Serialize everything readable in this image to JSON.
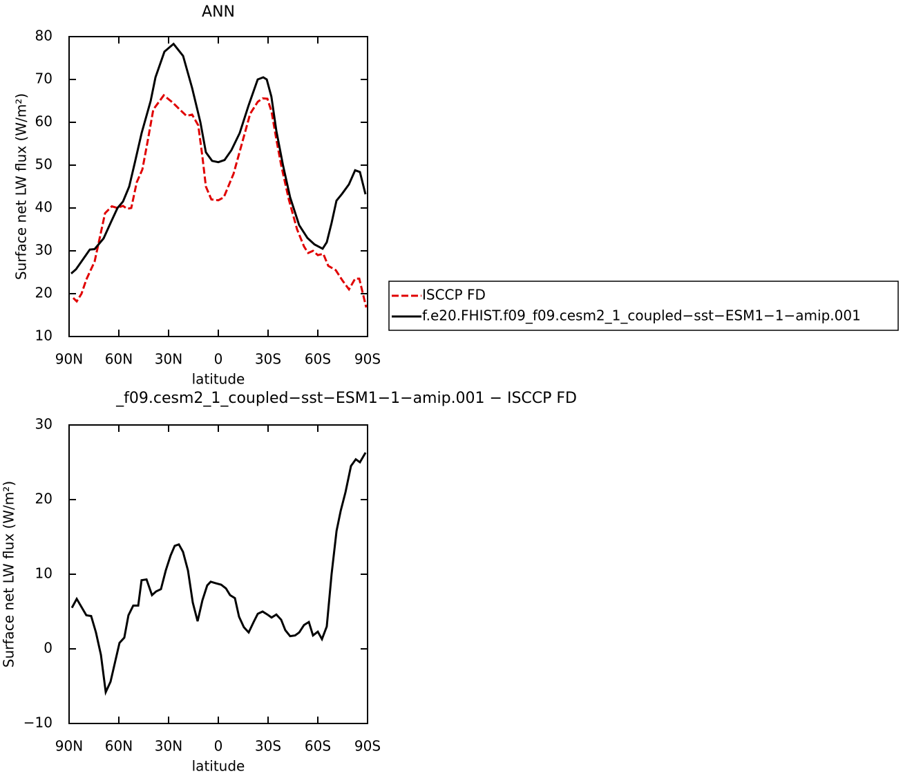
{
  "chart_data": [
    {
      "type": "line",
      "title": "ANN",
      "xlabel": "latitude",
      "ylabel": "Surface net LW flux (W/m²)",
      "xlim": [
        90,
        -90
      ],
      "xticks": [
        {
          "value": 90,
          "label": "90N"
        },
        {
          "value": 60,
          "label": "60N"
        },
        {
          "value": 30,
          "label": "30N"
        },
        0,
        {
          "value": -30,
          "label": "30S"
        },
        {
          "value": -60,
          "label": "60S"
        },
        {
          "value": -90,
          "label": "90S"
        }
      ],
      "ylim": [
        10,
        80
      ],
      "yticks": [
        10,
        20,
        30,
        40,
        50,
        60,
        70,
        80
      ],
      "legend": "right",
      "series": [
        {
          "name": "ISCCP FD",
          "color": "#e00000",
          "dash": true,
          "x": [
            87.5,
            85.4,
            82.5,
            79.6,
            74.6,
            68.3,
            64.2,
            60.8,
            57.5,
            55,
            52.5,
            49.2,
            45.8,
            42.9,
            39.2,
            32.9,
            27.5,
            23.3,
            19.2,
            15.8,
            12.1,
            9.6,
            7.5,
            4.2,
            0,
            -3.3,
            -9.2,
            -14.2,
            -19.2,
            -23.8,
            -26.7,
            -29.6,
            -32.1,
            -35,
            -37.9,
            -42.5,
            -47.5,
            -51.7,
            -54.2,
            -57.1,
            -60,
            -63.3,
            -66.3,
            -70.8,
            -75,
            -78.8,
            -82.5,
            -85,
            -89.2
          ],
          "values": [
            19,
            18.2,
            20,
            23.3,
            27.5,
            38.8,
            40.4,
            40,
            40.5,
            39.8,
            40,
            46,
            49,
            55,
            63,
            66.3,
            64.6,
            63,
            61.5,
            61.8,
            59.3,
            52,
            45,
            42,
            41.8,
            42.5,
            48,
            55,
            62,
            64.8,
            65.6,
            65.5,
            62.5,
            56,
            50,
            42,
            35,
            31,
            29.5,
            30,
            29,
            29.3,
            26.5,
            25.5,
            23,
            21,
            23.5,
            23.5,
            16.8
          ]
        },
        {
          "name": "f.e20.FHIST.f09_f09.cesm2_1_coupled−sst−ESM1−1−amip.001",
          "color": "#000000",
          "dash": false,
          "x": [
            88.75,
            85.8,
            77.5,
            74.6,
            69.2,
            65,
            60.8,
            57.5,
            53.75,
            50.4,
            46.25,
            40.8,
            37.9,
            32.5,
            27,
            21.25,
            15.8,
            10.8,
            7.5,
            3.75,
            0,
            -3.75,
            -7.9,
            -12.9,
            -18.3,
            -23.75,
            -27.1,
            -29.2,
            -32,
            -35,
            -39,
            -43.3,
            -48.75,
            -53.75,
            -58,
            -62.9,
            -65.4,
            -68.3,
            -71.25,
            -74.6,
            -78.75,
            -82.5,
            -85.4,
            -88.75
          ],
          "values": [
            24.7,
            25.7,
            30.3,
            30.4,
            32.9,
            36.5,
            40,
            41.5,
            45,
            50.5,
            57.5,
            65,
            70.5,
            76.5,
            78.3,
            75.5,
            68,
            60,
            53,
            51,
            50.7,
            51.2,
            53.5,
            57.5,
            64,
            70,
            70.5,
            70,
            66,
            58,
            50,
            42.5,
            36,
            33,
            31.5,
            30.5,
            32,
            36.5,
            41.7,
            43.3,
            45.5,
            48.8,
            48.4,
            43.2
          ]
        }
      ]
    },
    {
      "type": "line",
      "title": "_f09.cesm2_1_coupled−sst−ESM1−1−amip.001 − ISCCP FD",
      "xlabel": "latitude",
      "ylabel": "Surface net LW flux (W/m²)",
      "xlim": [
        90,
        -90
      ],
      "xticks": [
        {
          "value": 90,
          "label": "90N"
        },
        {
          "value": 60,
          "label": "60N"
        },
        {
          "value": 30,
          "label": "30N"
        },
        0,
        {
          "value": -30,
          "label": "30S"
        },
        {
          "value": -60,
          "label": "60S"
        },
        {
          "value": -90,
          "label": "90S"
        }
      ],
      "ylim": [
        -10,
        30
      ],
      "yticks": [
        {
          "value": -10,
          "label": "−10"
        },
        0,
        10,
        20,
        30
      ],
      "series": [
        {
          "color": "#000000",
          "dash": false,
          "x": [
            88.3,
            85.4,
            79.6,
            76.7,
            73.8,
            70.8,
            67.9,
            65,
            62.1,
            59.6,
            56.7,
            54.2,
            51.3,
            48.3,
            46.3,
            43.3,
            40,
            37.5,
            34.6,
            31.7,
            28.8,
            26.3,
            23.8,
            21.3,
            18.3,
            15.4,
            12.5,
            9.6,
            6.7,
            4.6,
            1.7,
            -1.7,
            -4.6,
            -7.1,
            -10,
            -12.5,
            -15.4,
            -18.3,
            -21.3,
            -23.8,
            -26.7,
            -29.6,
            -32.1,
            -35,
            -37.9,
            -40.4,
            -43.3,
            -46.3,
            -48.8,
            -51.7,
            -54.6,
            -57.1,
            -60,
            -62.5,
            -65.4,
            -68.3,
            -71.3,
            -73.8,
            -76.7,
            -80,
            -82.9,
            -85.4,
            -88.8
          ],
          "values": [
            5.5,
            6.7,
            4.5,
            4.4,
            2.2,
            -0.8,
            -5.8,
            -4.4,
            -1.6,
            0.8,
            1.5,
            4.5,
            5.8,
            5.8,
            9.2,
            9.3,
            7.2,
            7.7,
            8,
            10.5,
            12.5,
            13.8,
            14,
            13,
            10.5,
            6.2,
            3.7,
            6.5,
            8.5,
            9,
            8.8,
            8.6,
            8.1,
            7.2,
            6.8,
            4.3,
            2.9,
            2.2,
            3.6,
            4.7,
            5,
            4.6,
            4.2,
            4.6,
            3.9,
            2.5,
            1.7,
            1.8,
            2.2,
            3.2,
            3.6,
            1.8,
            2.3,
            1.3,
            3,
            10,
            15.8,
            18.5,
            21,
            24.5,
            25.4,
            25,
            26.3
          ]
        }
      ]
    }
  ]
}
